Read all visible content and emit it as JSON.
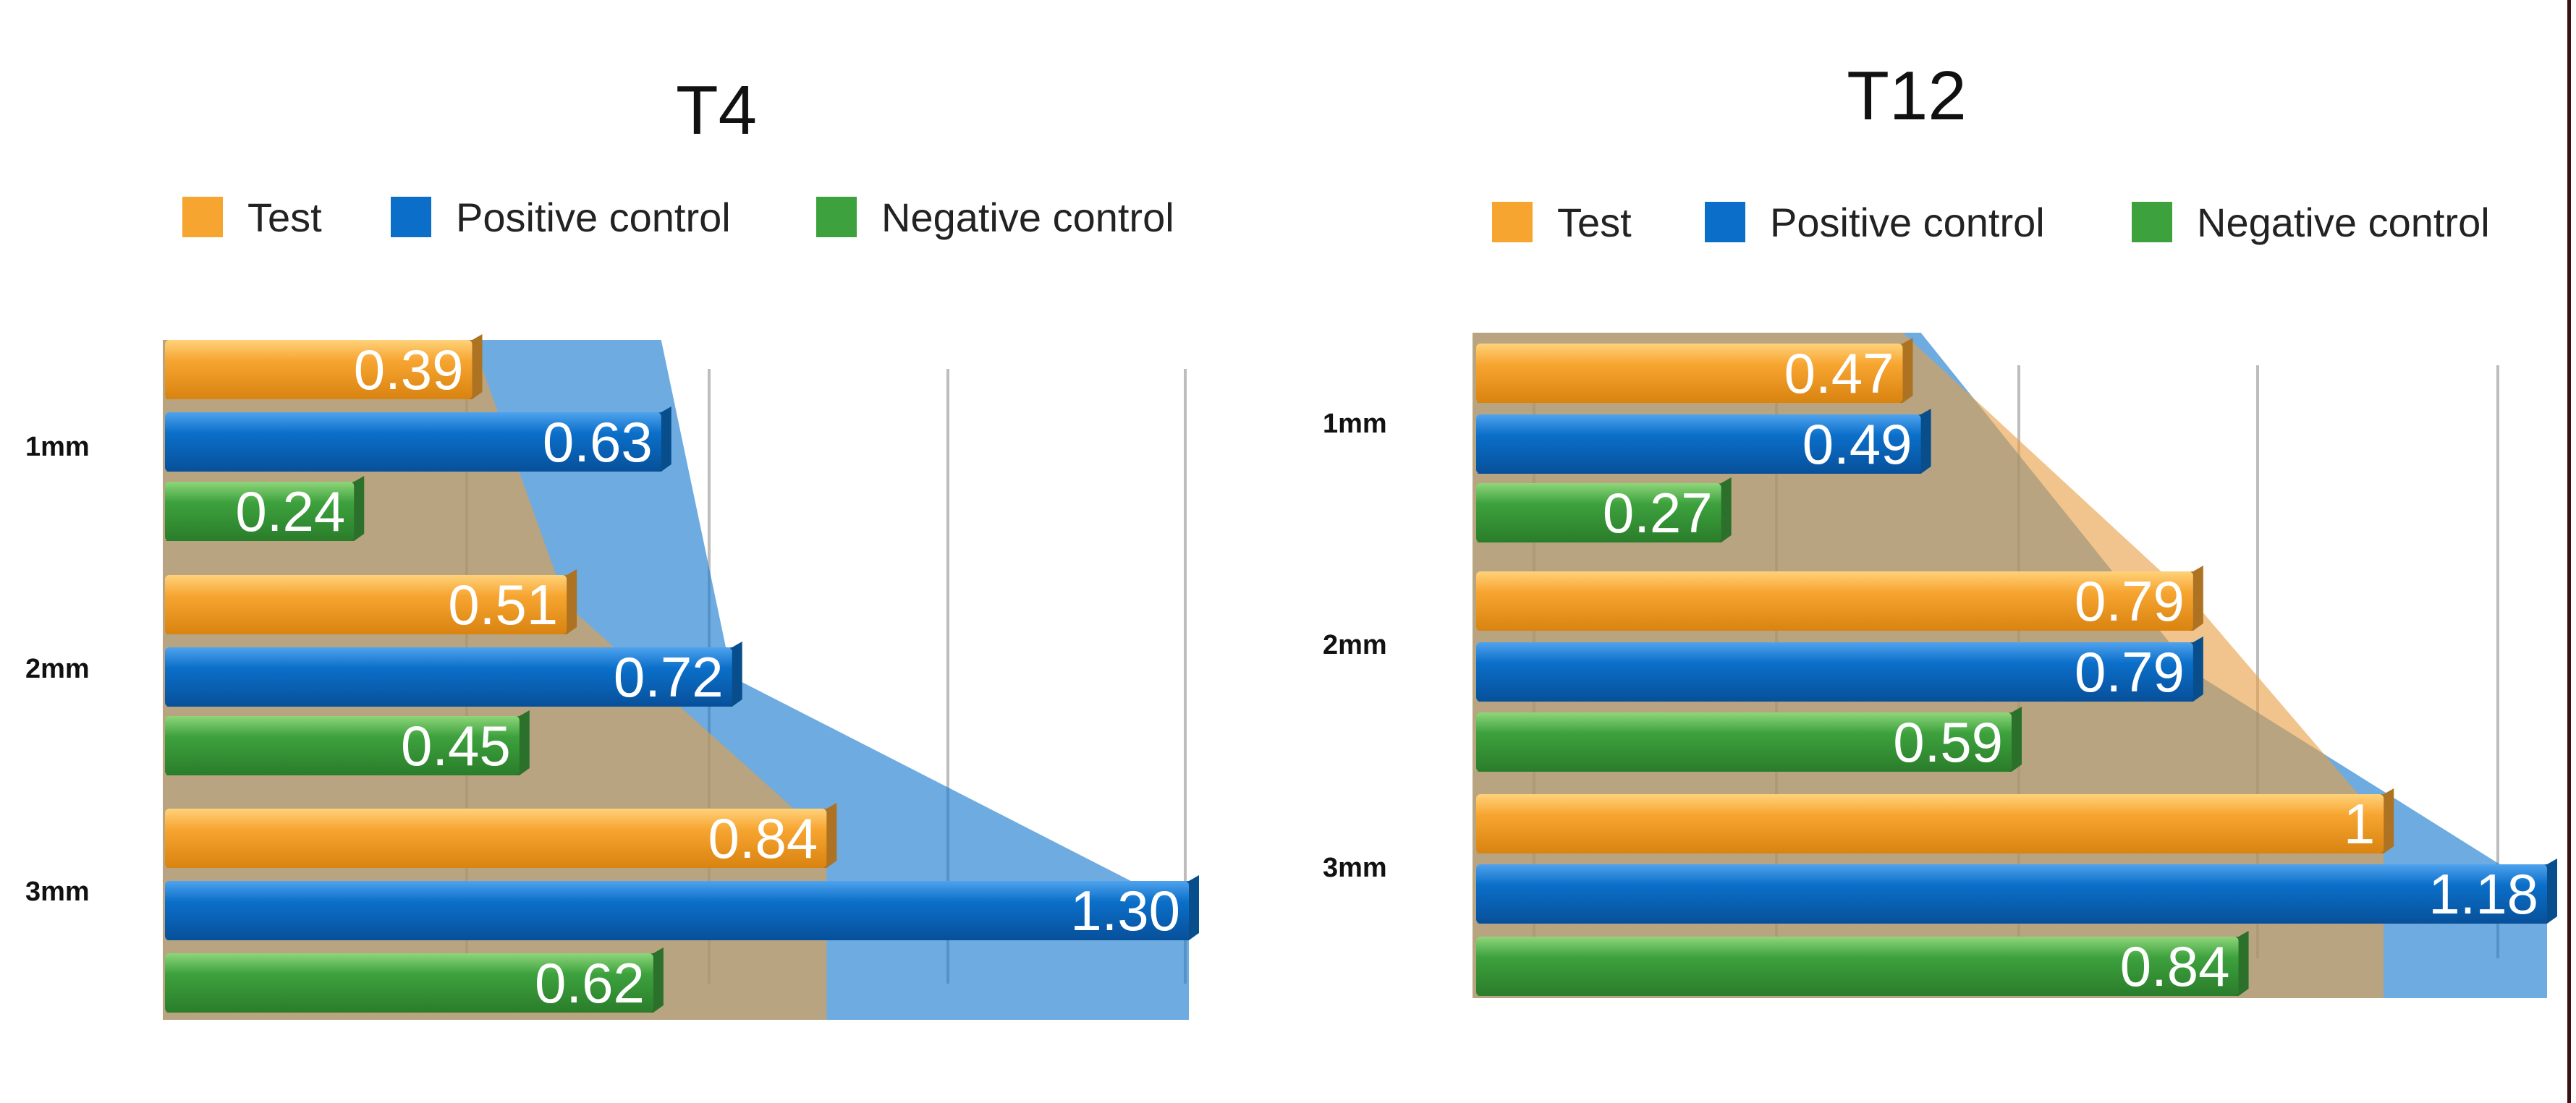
{
  "chart_data": [
    {
      "type": "bar",
      "orientation": "horizontal",
      "title": "T4",
      "categories": [
        "1mm",
        "2mm",
        "3mm"
      ],
      "series": [
        {
          "name": "Test",
          "color": "#F7A531",
          "values": [
            0.39,
            0.51,
            0.84
          ],
          "labels": [
            "0.39",
            "0.51",
            "0.84"
          ]
        },
        {
          "name": "Positive control",
          "color": "#0B6FC9",
          "values": [
            0.63,
            0.72,
            1.3
          ],
          "labels": [
            "0.63",
            "0.72",
            "1.30"
          ]
        },
        {
          "name": "Negative control",
          "color": "#3DA13D",
          "values": [
            0.24,
            0.45,
            0.62
          ],
          "labels": [
            "0.24",
            "0.45",
            "0.62"
          ]
        }
      ],
      "xlim": [
        0,
        1.3
      ],
      "legend_position": "top",
      "grid": true
    },
    {
      "type": "bar",
      "orientation": "horizontal",
      "title": "T12",
      "categories": [
        "1mm",
        "2mm",
        "3mm"
      ],
      "series": [
        {
          "name": "Test",
          "color": "#F7A531",
          "values": [
            0.47,
            0.79,
            1
          ],
          "labels": [
            "0.47",
            "0.79",
            "1"
          ]
        },
        {
          "name": "Positive control",
          "color": "#0B6FC9",
          "values": [
            0.49,
            0.79,
            1.18
          ],
          "labels": [
            "0.49",
            "0.79",
            "1.18"
          ]
        },
        {
          "name": "Negative control",
          "color": "#3DA13D",
          "values": [
            0.27,
            0.59,
            0.84
          ],
          "labels": [
            "0.27",
            "0.59",
            "0.84"
          ]
        }
      ],
      "xlim": [
        0,
        1.18
      ],
      "legend_position": "top",
      "grid": true
    }
  ]
}
